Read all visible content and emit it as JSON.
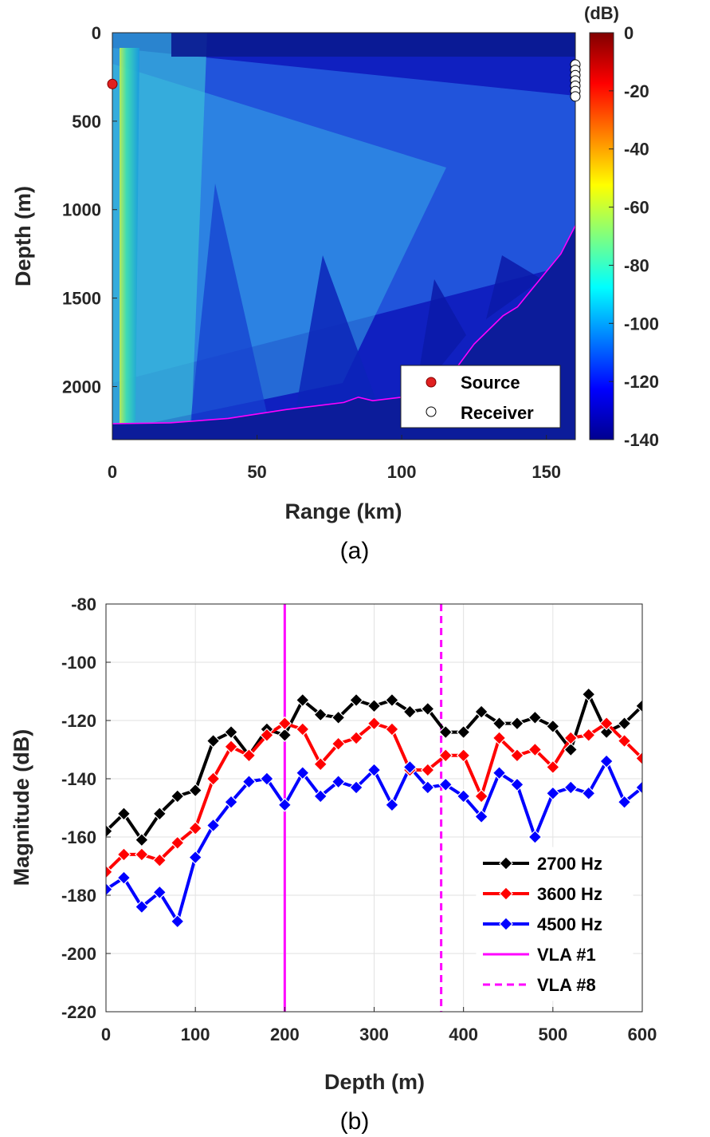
{
  "chart_data": [
    {
      "id": "a",
      "type": "heatmap",
      "caption": "(a)",
      "xlabel": "Range (km)",
      "ylabel": "Depth (m)",
      "xlim": [
        0,
        160
      ],
      "ylim": [
        2300,
        0
      ],
      "x_ticks": [
        "0",
        "50",
        "100",
        "150"
      ],
      "x_tick_values": [
        0,
        50,
        100,
        150
      ],
      "y_ticks": [
        "0",
        "500",
        "1000",
        "1500",
        "2000"
      ],
      "y_tick_values": [
        0,
        500,
        1000,
        1500,
        2000
      ],
      "colorbar": {
        "unit": "(dB)",
        "range": [
          -140,
          0
        ],
        "ticks": [
          "0",
          "-20",
          "-40",
          "-60",
          "-80",
          "-100",
          "-120",
          "-140"
        ],
        "tick_values": [
          0,
          -20,
          -40,
          -60,
          -80,
          -100,
          -120,
          -140
        ]
      },
      "bathymetry": {
        "color": "#ff00ff",
        "range_km": [
          0,
          20,
          40,
          60,
          80,
          85,
          90,
          100,
          110,
          115,
          120,
          125,
          130,
          135,
          140,
          145,
          150,
          155,
          160
        ],
        "depth_m": [
          2210,
          2205,
          2180,
          2130,
          2090,
          2060,
          2080,
          2060,
          2040,
          1980,
          1870,
          1760,
          1680,
          1600,
          1550,
          1450,
          1350,
          1250,
          1090
        ]
      },
      "source": {
        "label": "Source",
        "range_km": 0,
        "depth_m": 290,
        "color": "#e02020"
      },
      "receivers": {
        "label": "Receiver",
        "range_km": 160,
        "depth_m": [
          180,
          210,
          240,
          270,
          300,
          330,
          360
        ]
      },
      "legend_position": "bottom-right"
    },
    {
      "id": "b",
      "type": "line",
      "caption": "(b)",
      "xlabel": "Depth (m)",
      "ylabel": "Magnitude (dB)",
      "xlim": [
        0,
        600
      ],
      "ylim": [
        -220,
        -80
      ],
      "x_ticks": [
        "0",
        "100",
        "200",
        "300",
        "400",
        "500",
        "600"
      ],
      "x_tick_values": [
        0,
        100,
        200,
        300,
        400,
        500,
        600
      ],
      "y_ticks": [
        "-80",
        "-100",
        "-120",
        "-140",
        "-160",
        "-180",
        "-200",
        "-220"
      ],
      "y_tick_values": [
        -80,
        -100,
        -120,
        -140,
        -160,
        -180,
        -200,
        -220
      ],
      "grid": true,
      "legend_position": "bottom-right",
      "x": [
        0,
        20,
        40,
        60,
        80,
        100,
        120,
        140,
        160,
        180,
        200,
        220,
        240,
        260,
        280,
        300,
        320,
        340,
        360,
        380,
        400,
        420,
        440,
        460,
        480,
        500,
        520,
        540,
        560,
        580,
        600
      ],
      "series": [
        {
          "name": "2700 Hz",
          "color": "#000000",
          "values": [
            -158,
            -152,
            -161,
            -152,
            -146,
            -144,
            -127,
            -124,
            -132,
            -123,
            -125,
            -113,
            -118,
            -119,
            -113,
            -115,
            -113,
            -117,
            -116,
            -124,
            -124,
            -117,
            -121,
            -121,
            -119,
            -122,
            -130,
            -111,
            -124,
            -121,
            -115
          ]
        },
        {
          "name": "3600 Hz",
          "color": "#ff0000",
          "values": [
            -172,
            -166,
            -166,
            -168,
            -162,
            -157,
            -140,
            -129,
            -132,
            -125,
            -121,
            -123,
            -135,
            -128,
            -126,
            -121,
            -123,
            -137,
            -137,
            -132,
            -132,
            -146,
            -126,
            -132,
            -130,
            -136,
            -126,
            -125,
            -121,
            -127,
            -133
          ]
        },
        {
          "name": "4500 Hz",
          "color": "#0000ff",
          "values": [
            -178,
            -174,
            -184,
            -179,
            -189,
            -167,
            -156,
            -148,
            -141,
            -140,
            -149,
            -138,
            -146,
            -141,
            -143,
            -137,
            -149,
            -136,
            -143,
            -142,
            -146,
            -153,
            -138,
            -142,
            -160,
            -145,
            -143,
            -145,
            -134,
            -148,
            -143
          ]
        }
      ],
      "vlines": [
        {
          "name": "VLA #1",
          "x": 200,
          "color": "#ff00ff",
          "style": "solid"
        },
        {
          "name": "VLA #8",
          "x": 375,
          "color": "#ff00ff",
          "style": "dashed"
        }
      ]
    }
  ]
}
